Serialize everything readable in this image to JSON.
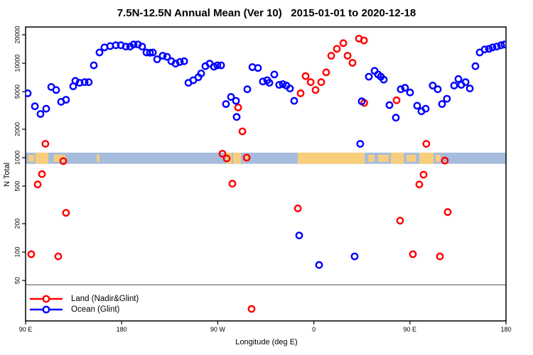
{
  "chart_data": {
    "type": "scatter",
    "title": "7.5N-12.5N Annual Mean (Ver 10)   2015-01-01 to 2020-12-18",
    "xlabel": "Longitude (deg E)",
    "ylabel": "N Total",
    "x_axis": {
      "note": "continuous longitude axis spanning 450 degrees starting at 90E, wrapping 180/90W/0/90E/180",
      "xlim_deg": [
        0,
        450
      ],
      "ticks": [
        {
          "label": "90 E",
          "deg": 0
        },
        {
          "label": "180",
          "deg": 90
        },
        {
          "label": "90 W",
          "deg": 180
        },
        {
          "label": "0",
          "deg": 270
        },
        {
          "label": "90 E",
          "deg": 360
        },
        {
          "label": "180",
          "deg": 450
        }
      ]
    },
    "y_axis": {
      "scale": "log",
      "ylim": [
        19,
        24000
      ],
      "ticks": [
        {
          "label": "20000",
          "value": 20000
        },
        {
          "label": "10000",
          "value": 10000
        },
        {
          "label": "5000",
          "value": 5000
        },
        {
          "label": "2000",
          "value": 2000
        },
        {
          "label": "1000",
          "value": 1000
        },
        {
          "label": "500",
          "value": 500
        },
        {
          "label": "200",
          "value": 200
        },
        {
          "label": "100",
          "value": 100
        },
        {
          "label": "50",
          "value": 50
        }
      ]
    },
    "reference_line": {
      "value": 45,
      "color": "#737373"
    },
    "map_band": {
      "description": "world-map strip at the 7.5N-12.5N latitude band, ocean vs land",
      "value_top": 1130,
      "value_bottom": 860,
      "ocean_color": "#A6BCDC",
      "land_color": "#F8CE7C",
      "land_patches_deg": [
        {
          "from": 2.7,
          "to": 8.0,
          "partial": true
        },
        {
          "from": 9.3,
          "to": 21.3
        },
        {
          "from": 26.6,
          "to": 37.3,
          "partial": true
        },
        {
          "from": 66.6,
          "to": 69.2,
          "partial": true
        },
        {
          "from": 187.7,
          "to": 193.1
        },
        {
          "from": 194.4,
          "to": 201.7
        },
        {
          "from": 206.4,
          "to": 208.4,
          "partial": true
        },
        {
          "from": 255.0,
          "to": 317.6
        },
        {
          "from": 320.9,
          "to": 326.9,
          "partial": true
        },
        {
          "from": 330.2,
          "to": 340.2,
          "partial": true
        },
        {
          "from": 342.2,
          "to": 354.2
        },
        {
          "from": 356.8,
          "to": 365.5,
          "partial": true
        },
        {
          "from": 368.8,
          "to": 382.1
        },
        {
          "from": 384.1,
          "to": 388.8,
          "partial": true
        }
      ]
    },
    "series": [
      {
        "name": "Land (Nadir&Glint)",
        "color": "#FF0000",
        "points_deg_n": [
          [
            5.3,
            95
          ],
          [
            11.3,
            520
          ],
          [
            15.3,
            670
          ],
          [
            18.6,
            1400
          ],
          [
            30.6,
            90
          ],
          [
            35.3,
            920
          ],
          [
            37.9,
            260
          ],
          [
            184.4,
            1100
          ],
          [
            188.4,
            980
          ],
          [
            193.7,
            530
          ],
          [
            199.1,
            3400
          ],
          [
            203.1,
            1900
          ],
          [
            207.1,
            1000
          ],
          [
            211.7,
            25
          ],
          [
            255.0,
            290
          ],
          [
            257.6,
            4800
          ],
          [
            262.3,
            7300
          ],
          [
            267.0,
            6300
          ],
          [
            271.6,
            5200
          ],
          [
            276.9,
            6300
          ],
          [
            281.6,
            8000
          ],
          [
            286.3,
            12000
          ],
          [
            291.6,
            14200
          ],
          [
            297.6,
            16300
          ],
          [
            301.6,
            12000
          ],
          [
            306.2,
            10100
          ],
          [
            312.3,
            18200
          ],
          [
            316.9,
            17400
          ],
          [
            317.2,
            3800
          ],
          [
            347.5,
            4050
          ],
          [
            350.8,
            215
          ],
          [
            362.8,
            95
          ],
          [
            368.8,
            520
          ],
          [
            372.8,
            660
          ],
          [
            375.4,
            1400
          ],
          [
            388.1,
            90
          ],
          [
            392.7,
            930
          ],
          [
            395.4,
            265
          ]
        ]
      },
      {
        "name": "Ocean (Glint)",
        "color": "#0000FF",
        "points_deg_n": [
          [
            2.0,
            4800
          ],
          [
            8.7,
            3500
          ],
          [
            14.0,
            2900
          ],
          [
            19.3,
            3300
          ],
          [
            24.0,
            5600
          ],
          [
            28.6,
            5200
          ],
          [
            33.3,
            3900
          ],
          [
            37.9,
            4100
          ],
          [
            44.6,
            5700
          ],
          [
            46.6,
            6500
          ],
          [
            50.6,
            6200
          ],
          [
            55.3,
            6300
          ],
          [
            59.2,
            6300
          ],
          [
            63.9,
            9500
          ],
          [
            69.2,
            13000
          ],
          [
            73.9,
            14700
          ],
          [
            79.2,
            15200
          ],
          [
            84.5,
            15500
          ],
          [
            89.2,
            15500
          ],
          [
            93.9,
            15000
          ],
          [
            97.9,
            15000
          ],
          [
            101.2,
            15800
          ],
          [
            105.2,
            15800
          ],
          [
            109.2,
            15000
          ],
          [
            113.2,
            13000
          ],
          [
            116.5,
            12900
          ],
          [
            119.2,
            13000
          ],
          [
            123.2,
            11000
          ],
          [
            128.5,
            12000
          ],
          [
            132.5,
            11700
          ],
          [
            136.5,
            10500
          ],
          [
            140.5,
            9900
          ],
          [
            144.5,
            10300
          ],
          [
            148.5,
            10500
          ],
          [
            152.5,
            6200
          ],
          [
            157.1,
            6600
          ],
          [
            161.8,
            7100
          ],
          [
            164.4,
            7800
          ],
          [
            168.4,
            9300
          ],
          [
            172.4,
            9900
          ],
          [
            176.4,
            9200
          ],
          [
            179.7,
            9500
          ],
          [
            183.1,
            9500
          ],
          [
            187.7,
            3700
          ],
          [
            192.4,
            4400
          ],
          [
            197.1,
            4000
          ],
          [
            197.7,
            2700
          ],
          [
            207.7,
            5300
          ],
          [
            212.4,
            9100
          ],
          [
            217.7,
            8900
          ],
          [
            222.3,
            6400
          ],
          [
            226.3,
            6600
          ],
          [
            228.3,
            6200
          ],
          [
            233.0,
            7600
          ],
          [
            237.6,
            5900
          ],
          [
            241.0,
            6000
          ],
          [
            244.3,
            5800
          ],
          [
            247.6,
            5400
          ],
          [
            251.6,
            4000
          ],
          [
            256.3,
            150
          ],
          [
            274.9,
            73
          ],
          [
            308.2,
            90
          ],
          [
            313.5,
            1400
          ],
          [
            314.9,
            3950
          ],
          [
            321.5,
            7200
          ],
          [
            326.9,
            8300
          ],
          [
            330.2,
            7600
          ],
          [
            332.8,
            7200
          ],
          [
            335.5,
            6700
          ],
          [
            340.8,
            3600
          ],
          [
            346.8,
            2650
          ],
          [
            351.4,
            5300
          ],
          [
            355.4,
            5500
          ],
          [
            360.1,
            4900
          ],
          [
            366.8,
            3550
          ],
          [
            370.8,
            3100
          ],
          [
            374.8,
            3300
          ],
          [
            381.4,
            5800
          ],
          [
            386.1,
            5300
          ],
          [
            390.1,
            3700
          ],
          [
            394.7,
            4200
          ],
          [
            401.4,
            5800
          ],
          [
            405.4,
            6800
          ],
          [
            408.1,
            5900
          ],
          [
            412.1,
            6300
          ],
          [
            416.1,
            5400
          ],
          [
            421.4,
            9300
          ],
          [
            425.4,
            13000
          ],
          [
            430.1,
            14000
          ],
          [
            434.1,
            14200
          ],
          [
            437.4,
            14700
          ],
          [
            441.4,
            15000
          ],
          [
            445.4,
            15500
          ],
          [
            448.7,
            15800
          ]
        ]
      }
    ],
    "legend_position": "bottom-left"
  },
  "legend": {
    "items": [
      {
        "label": "Land (Nadir&Glint)",
        "color": "#FF0000"
      },
      {
        "label": "Ocean (Glint)",
        "color": "#0000FF"
      }
    ]
  }
}
